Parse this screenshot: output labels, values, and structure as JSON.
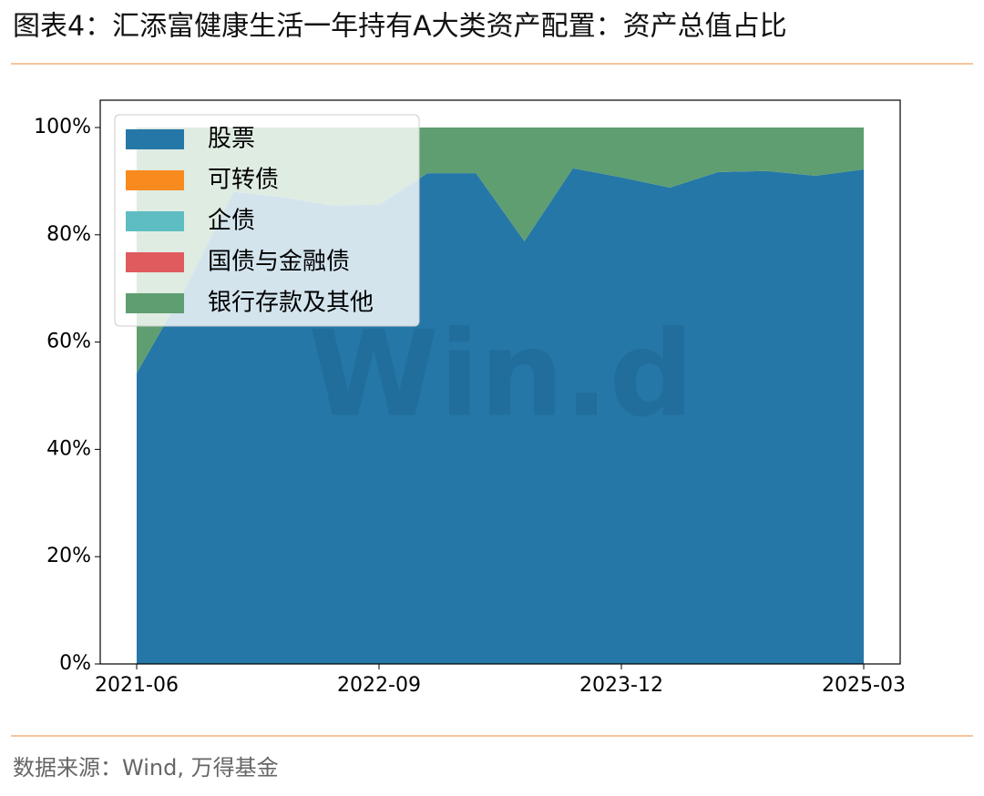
{
  "header": {
    "title": "图表4：汇添富健康生活一年持有A大类资产配置：资产总值占比"
  },
  "chart_data": {
    "type": "stacked-area",
    "x": [
      "2021-06",
      "2021-09",
      "2021-12",
      "2022-03",
      "2022-06",
      "2022-09",
      "2022-12",
      "2023-03",
      "2023-06",
      "2023-09",
      "2023-12",
      "2024-03",
      "2024-06",
      "2024-09",
      "2024-12",
      "2025-03"
    ],
    "xticks": [
      "2021-06",
      "2022-09",
      "2023-12",
      "2025-03"
    ],
    "ylim": [
      0,
      100
    ],
    "yticks": [
      {
        "value": 0,
        "label": "0%"
      },
      {
        "value": 20,
        "label": "20%"
      },
      {
        "value": 40,
        "label": "40%"
      },
      {
        "value": 60,
        "label": "60%"
      },
      {
        "value": 80,
        "label": "80%"
      },
      {
        "value": 100,
        "label": "100%"
      }
    ],
    "legend": "upper-left",
    "watermark": "Win.d",
    "series": [
      {
        "name": "股票",
        "color": "#2577a7",
        "values": [
          54.2,
          70,
          88,
          87,
          85.5,
          85.6,
          91.5,
          91.5,
          78.8,
          92.4,
          90.7,
          88.8,
          91.7,
          91.9,
          91,
          92.2
        ]
      },
      {
        "name": "可转债",
        "color": "#f98a1e",
        "values": [
          0,
          0,
          0,
          0,
          0,
          0,
          0,
          0,
          0,
          0,
          0,
          0,
          0,
          0,
          0,
          0
        ]
      },
      {
        "name": "企债",
        "color": "#5dbdc2",
        "values": [
          0,
          0,
          0,
          0,
          0,
          0,
          0,
          0,
          0,
          0,
          0,
          0,
          0,
          0,
          0,
          0
        ]
      },
      {
        "name": "国债与金融债",
        "color": "#e05b5e",
        "values": [
          0,
          0,
          0,
          0,
          0,
          0,
          0,
          0,
          0,
          0,
          0,
          0,
          0,
          0,
          0,
          0
        ]
      },
      {
        "name": "银行存款及其他",
        "color": "#5f9e70",
        "values": [
          45.8,
          30,
          12,
          13,
          14.5,
          14.4,
          8.5,
          8.5,
          21.2,
          7.6,
          9.3,
          11.2,
          8.3,
          8.1,
          9,
          7.8
        ]
      }
    ]
  },
  "footer": {
    "source": "数据来源：Wind, 万得基金"
  }
}
